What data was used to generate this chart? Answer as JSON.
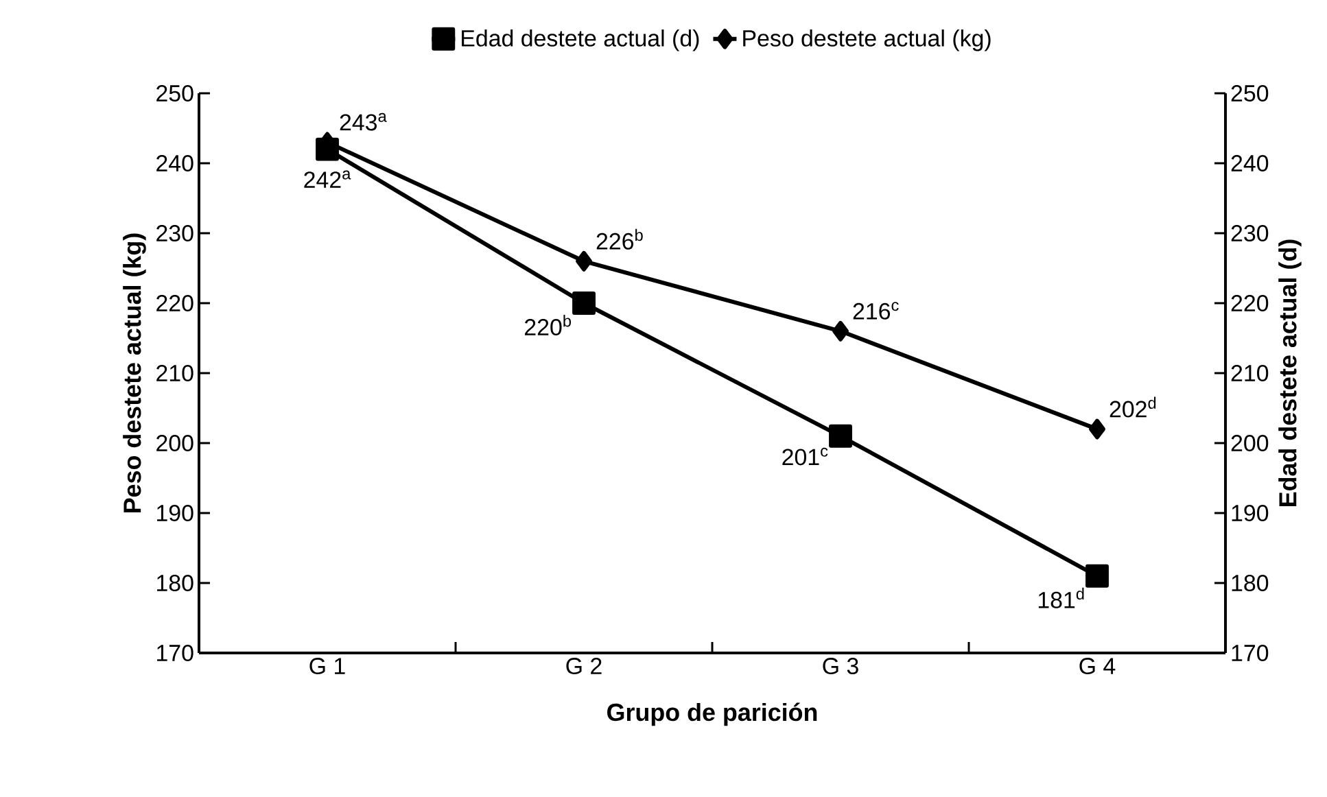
{
  "chart_data": {
    "type": "line",
    "xlabel": "Grupo de parición",
    "ylabel": "Peso destete actual (kg)",
    "y2label": "Edad destete actual (d)",
    "categories": [
      "G 1",
      "G 2",
      "G 3",
      "G 4"
    ],
    "series": [
      {
        "name": "Edad destete actual (d)",
        "color": "#000000",
        "marker": "square",
        "axis": "y2",
        "values": [
          242,
          220,
          201,
          181
        ],
        "value_labels": [
          "242$^{a}$",
          "220$^{b}$",
          "201$^{c}$",
          "181$^{d}$"
        ]
      },
      {
        "name": "Peso destete actual (kg)",
        "color": "#000000",
        "marker": "diamond",
        "values": [
          243,
          226,
          216,
          202
        ],
        "value_labels": [
          "243$^{a}$",
          "226$^{b}$",
          "216$^{c}$",
          "202$^{d}$"
        ]
      }
    ],
    "ylim": [
      170,
      250
    ],
    "yticks": [
      170,
      180,
      190,
      200,
      210,
      220,
      230,
      240,
      250
    ],
    "y2lim": [
      170,
      250
    ],
    "y2ticks": [
      170,
      180,
      190,
      200,
      210,
      220,
      230,
      240,
      250
    ],
    "legend": "top",
    "grid": false,
    "line_style": "solid"
  }
}
